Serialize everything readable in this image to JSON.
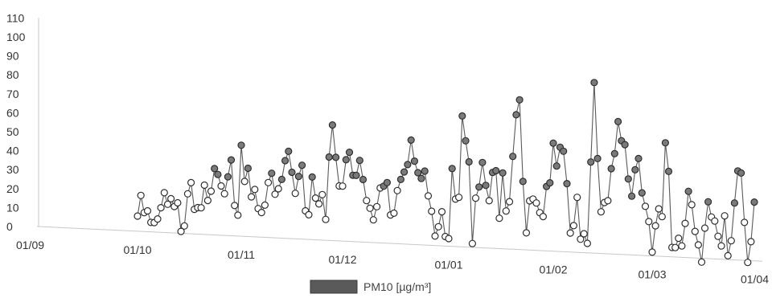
{
  "chart_data": {
    "type": "line",
    "title": "",
    "xlabel": "",
    "ylabel": "",
    "ylim": [
      0,
      110
    ],
    "yticks": [
      0,
      10,
      20,
      30,
      40,
      50,
      60,
      70,
      80,
      90,
      100,
      110
    ],
    "xticks": [
      "01/09",
      "01/10",
      "01/11",
      "01/12",
      "01/01",
      "01/02",
      "01/03",
      "01/04"
    ],
    "grid": false,
    "legend_position": "bottom-center",
    "colors": {
      "series": "#5a5a5a",
      "marker_high": "#7a7a7a",
      "marker_low": "#ffffff"
    },
    "series": [
      {
        "name": "PM10 [µg/m³]",
        "x": [
          "2019-10-01",
          "2019-10-02",
          "2019-10-03",
          "2019-10-04",
          "2019-10-05",
          "2019-10-06",
          "2019-10-07",
          "2019-10-08",
          "2019-10-09",
          "2019-10-10",
          "2019-10-11",
          "2019-10-12",
          "2019-10-13",
          "2019-10-14",
          "2019-10-15",
          "2019-10-16",
          "2019-10-17",
          "2019-10-18",
          "2019-10-19",
          "2019-10-20",
          "2019-10-21",
          "2019-10-22",
          "2019-10-23",
          "2019-10-24",
          "2019-10-25",
          "2019-10-26",
          "2019-10-27",
          "2019-10-28",
          "2019-10-29",
          "2019-10-30",
          "2019-10-31",
          "2019-11-01",
          "2019-11-02",
          "2019-11-03",
          "2019-11-04",
          "2019-11-05",
          "2019-11-06",
          "2019-11-07",
          "2019-11-08",
          "2019-11-09",
          "2019-11-10",
          "2019-11-11",
          "2019-11-12",
          "2019-11-13",
          "2019-11-14",
          "2019-11-15",
          "2019-11-16",
          "2019-11-17",
          "2019-11-18",
          "2019-11-19",
          "2019-11-20",
          "2019-11-21",
          "2019-11-22",
          "2019-11-23",
          "2019-11-24",
          "2019-11-25",
          "2019-11-26",
          "2019-11-27",
          "2019-11-28",
          "2019-11-29",
          "2019-11-30",
          "2019-12-01",
          "2019-12-02",
          "2019-12-03",
          "2019-12-04",
          "2019-12-05",
          "2019-12-06",
          "2019-12-07",
          "2019-12-08",
          "2019-12-09",
          "2019-12-10",
          "2019-12-11",
          "2019-12-12",
          "2019-12-13",
          "2019-12-14",
          "2019-12-15",
          "2019-12-16",
          "2019-12-17",
          "2019-12-18",
          "2019-12-19",
          "2019-12-20",
          "2019-12-21",
          "2019-12-22",
          "2019-12-23",
          "2019-12-24",
          "2019-12-25",
          "2019-12-26",
          "2019-12-27",
          "2019-12-28",
          "2019-12-29",
          "2019-12-30",
          "2019-12-31",
          "2020-01-01",
          "2020-01-02",
          "2020-01-03",
          "2020-01-04",
          "2020-01-05",
          "2020-01-06",
          "2020-01-07",
          "2020-01-08",
          "2020-01-09",
          "2020-01-10",
          "2020-01-11",
          "2020-01-12",
          "2020-01-13",
          "2020-01-14",
          "2020-01-15",
          "2020-01-16",
          "2020-01-17",
          "2020-01-18",
          "2020-01-19",
          "2020-01-20",
          "2020-01-21",
          "2020-01-22",
          "2020-01-23",
          "2020-01-24",
          "2020-01-25",
          "2020-01-26",
          "2020-01-27",
          "2020-01-28",
          "2020-01-29",
          "2020-01-30",
          "2020-01-31",
          "2020-02-01",
          "2020-02-02",
          "2020-02-03",
          "2020-02-04",
          "2020-02-05",
          "2020-02-06",
          "2020-02-07",
          "2020-02-08",
          "2020-02-09",
          "2020-02-10",
          "2020-02-11",
          "2020-02-12",
          "2020-02-13",
          "2020-02-14",
          "2020-02-15",
          "2020-02-16",
          "2020-02-17",
          "2020-02-18",
          "2020-02-19",
          "2020-02-20",
          "2020-02-21",
          "2020-02-22",
          "2020-02-23",
          "2020-02-24",
          "2020-02-25",
          "2020-02-26",
          "2020-02-27",
          "2020-02-28",
          "2020-02-29",
          "2020-03-01",
          "2020-03-02",
          "2020-03-03",
          "2020-03-04",
          "2020-03-05",
          "2020-03-06",
          "2020-03-07",
          "2020-03-08",
          "2020-03-09",
          "2020-03-10",
          "2020-03-11",
          "2020-03-12",
          "2020-03-13",
          "2020-03-14",
          "2020-03-15",
          "2020-03-16",
          "2020-03-17",
          "2020-03-18",
          "2020-03-19",
          "2020-03-20",
          "2020-03-21",
          "2020-03-22",
          "2020-03-23",
          "2020-03-24",
          "2020-03-25",
          "2020-03-26",
          "2020-03-27",
          "2020-03-28",
          "2020-03-29",
          "2020-03-30",
          "2020-03-31",
          "2020-04-01"
        ],
        "values": [
          8,
          19,
          10,
          11,
          5,
          5,
          7,
          13,
          21,
          15,
          18,
          14,
          16,
          1,
          4,
          21,
          27,
          13,
          14,
          14,
          26,
          18,
          23,
          35,
          32,
          26,
          22,
          31,
          40,
          16,
          11,
          48,
          29,
          36,
          21,
          25,
          15,
          13,
          17,
          29,
          34,
          23,
          26,
          31,
          41,
          46,
          35,
          24,
          33,
          39,
          15,
          13,
          33,
          22,
          19,
          24,
          11,
          44,
          61,
          44,
          29,
          29,
          43,
          47,
          35,
          35,
          43,
          33,
          22,
          18,
          12,
          19,
          29,
          30,
          32,
          15,
          16,
          28,
          34,
          38,
          42,
          55,
          44,
          38,
          35,
          39,
          26,
          18,
          5,
          10,
          18,
          5,
          4,
          41,
          25,
          26,
          69,
          56,
          45,
          2,
          26,
          32,
          45,
          33,
          25,
          40,
          41,
          16,
          40,
          20,
          25,
          49,
          71,
          79,
          36,
          9,
          26,
          27,
          25,
          20,
          18,
          34,
          36,
          57,
          45,
          55,
          53,
          36,
          10,
          14,
          29,
          7,
          10,
          5,
          48,
          90,
          50,
          22,
          27,
          28,
          45,
          53,
          70,
          60,
          58,
          40,
          31,
          45,
          51,
          33,
          26,
          18,
          2,
          16,
          25,
          21,
          60,
          45,
          5,
          5,
          10,
          6,
          18,
          35,
          28,
          14,
          7,
          -2,
          16,
          30,
          22,
          20,
          12,
          7,
          23,
          2,
          10,
          30,
          47,
          46,
          20,
          -1,
          10,
          31
        ]
      }
    ]
  }
}
